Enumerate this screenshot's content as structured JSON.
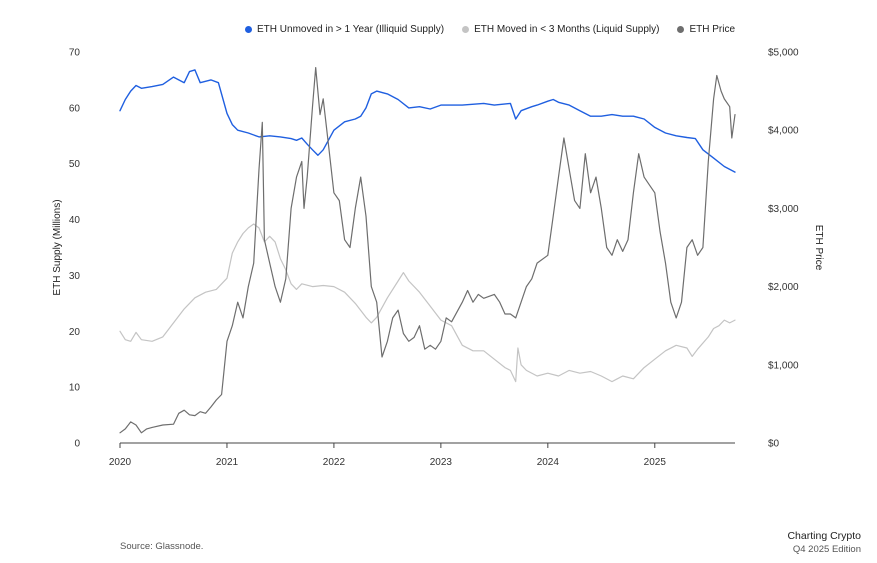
{
  "chart_data": {
    "type": "line",
    "title": "",
    "xlabel": "",
    "ylabel": "ETH Supply (Millions)",
    "y2label": "ETH Price",
    "x_ticks": [
      "2020",
      "2021",
      "2022",
      "2023",
      "2024",
      "2025"
    ],
    "x_range": [
      2020.0,
      2025.75
    ],
    "ylim": [
      0,
      70
    ],
    "y_ticks": [
      "0",
      "10",
      "20",
      "30",
      "40",
      "50",
      "60",
      "70"
    ],
    "y2lim": [
      0,
      5000
    ],
    "y2_ticks": [
      "$0",
      "$1,000",
      "$2,000",
      "$3,000",
      "$4,000",
      "$5,000"
    ],
    "legend_position": "top-right",
    "series": [
      {
        "name": "ETH Unmoved in > 1 Year (Illiquid Supply)",
        "color": "#1f5fe0",
        "axis": "left",
        "points": [
          [
            2020.0,
            59.5
          ],
          [
            2020.05,
            61.5
          ],
          [
            2020.1,
            63
          ],
          [
            2020.15,
            64
          ],
          [
            2020.2,
            63.5
          ],
          [
            2020.3,
            63.8
          ],
          [
            2020.4,
            64.2
          ],
          [
            2020.5,
            65.5
          ],
          [
            2020.6,
            64.5
          ],
          [
            2020.65,
            66.5
          ],
          [
            2020.7,
            66.8
          ],
          [
            2020.75,
            64.5
          ],
          [
            2020.85,
            65
          ],
          [
            2020.92,
            64.5
          ],
          [
            2021.0,
            59
          ],
          [
            2021.05,
            57
          ],
          [
            2021.1,
            56
          ],
          [
            2021.2,
            55.5
          ],
          [
            2021.3,
            54.8
          ],
          [
            2021.4,
            55
          ],
          [
            2021.5,
            54.8
          ],
          [
            2021.6,
            54.5
          ],
          [
            2021.65,
            54.2
          ],
          [
            2021.7,
            54.6
          ],
          [
            2021.75,
            53.5
          ],
          [
            2021.8,
            52.5
          ],
          [
            2021.85,
            51.5
          ],
          [
            2021.9,
            52.5
          ],
          [
            2022.0,
            56
          ],
          [
            2022.1,
            57.5
          ],
          [
            2022.2,
            58
          ],
          [
            2022.25,
            58.5
          ],
          [
            2022.3,
            60
          ],
          [
            2022.35,
            62.5
          ],
          [
            2022.4,
            63
          ],
          [
            2022.5,
            62.5
          ],
          [
            2022.6,
            61.5
          ],
          [
            2022.7,
            60
          ],
          [
            2022.8,
            60.2
          ],
          [
            2022.9,
            59.8
          ],
          [
            2023.0,
            60.5
          ],
          [
            2023.2,
            60.5
          ],
          [
            2023.4,
            60.8
          ],
          [
            2023.5,
            60.5
          ],
          [
            2023.65,
            60.8
          ],
          [
            2023.7,
            58
          ],
          [
            2023.75,
            59.5
          ],
          [
            2023.85,
            60.2
          ],
          [
            2023.9,
            60.5
          ],
          [
            2024.0,
            61.2
          ],
          [
            2024.05,
            61.5
          ],
          [
            2024.1,
            61
          ],
          [
            2024.2,
            60.5
          ],
          [
            2024.3,
            59.5
          ],
          [
            2024.4,
            58.5
          ],
          [
            2024.5,
            58.5
          ],
          [
            2024.6,
            58.8
          ],
          [
            2024.7,
            58.5
          ],
          [
            2024.8,
            58.5
          ],
          [
            2024.9,
            58
          ],
          [
            2025.0,
            56.5
          ],
          [
            2025.1,
            55.5
          ],
          [
            2025.2,
            55
          ],
          [
            2025.3,
            54.7
          ],
          [
            2025.38,
            54.5
          ],
          [
            2025.45,
            52.5
          ],
          [
            2025.55,
            51
          ],
          [
            2025.65,
            49.5
          ],
          [
            2025.75,
            48.5
          ]
        ]
      },
      {
        "name": "ETH Moved in < 3 Months (Liquid Supply)",
        "color": "#c4c4c4",
        "axis": "left",
        "points": [
          [
            2020.0,
            20
          ],
          [
            2020.05,
            18.5
          ],
          [
            2020.1,
            18.2
          ],
          [
            2020.15,
            19.8
          ],
          [
            2020.2,
            18.5
          ],
          [
            2020.3,
            18.2
          ],
          [
            2020.4,
            19
          ],
          [
            2020.5,
            21.5
          ],
          [
            2020.6,
            24
          ],
          [
            2020.7,
            26
          ],
          [
            2020.8,
            27
          ],
          [
            2020.9,
            27.5
          ],
          [
            2021.0,
            29.5
          ],
          [
            2021.05,
            34
          ],
          [
            2021.1,
            36
          ],
          [
            2021.15,
            37.5
          ],
          [
            2021.2,
            38.5
          ],
          [
            2021.25,
            39.2
          ],
          [
            2021.3,
            38.5
          ],
          [
            2021.35,
            36
          ],
          [
            2021.4,
            37
          ],
          [
            2021.45,
            36
          ],
          [
            2021.5,
            33
          ],
          [
            2021.55,
            31
          ],
          [
            2021.6,
            28.5
          ],
          [
            2021.65,
            27.5
          ],
          [
            2021.7,
            28.5
          ],
          [
            2021.8,
            28
          ],
          [
            2021.9,
            28.2
          ],
          [
            2022.0,
            28
          ],
          [
            2022.1,
            27
          ],
          [
            2022.2,
            25
          ],
          [
            2022.3,
            22.5
          ],
          [
            2022.35,
            21.5
          ],
          [
            2022.4,
            22.5
          ],
          [
            2022.5,
            26
          ],
          [
            2022.6,
            29
          ],
          [
            2022.65,
            30.5
          ],
          [
            2022.7,
            29
          ],
          [
            2022.8,
            27
          ],
          [
            2022.9,
            24.5
          ],
          [
            2023.0,
            22
          ],
          [
            2023.1,
            21
          ],
          [
            2023.2,
            17.5
          ],
          [
            2023.3,
            16.5
          ],
          [
            2023.4,
            16.5
          ],
          [
            2023.5,
            15
          ],
          [
            2023.6,
            13.5
          ],
          [
            2023.65,
            13
          ],
          [
            2023.7,
            11
          ],
          [
            2023.72,
            17
          ],
          [
            2023.75,
            14
          ],
          [
            2023.8,
            13
          ],
          [
            2023.9,
            12
          ],
          [
            2024.0,
            12.5
          ],
          [
            2024.1,
            12
          ],
          [
            2024.2,
            13
          ],
          [
            2024.3,
            12.5
          ],
          [
            2024.4,
            12.8
          ],
          [
            2024.5,
            12
          ],
          [
            2024.6,
            11
          ],
          [
            2024.65,
            11.5
          ],
          [
            2024.7,
            12
          ],
          [
            2024.8,
            11.5
          ],
          [
            2024.9,
            13.5
          ],
          [
            2025.0,
            15
          ],
          [
            2025.1,
            16.5
          ],
          [
            2025.2,
            17.5
          ],
          [
            2025.3,
            17
          ],
          [
            2025.35,
            15.5
          ],
          [
            2025.4,
            16.8
          ],
          [
            2025.5,
            19
          ],
          [
            2025.55,
            20.5
          ],
          [
            2025.6,
            21
          ],
          [
            2025.65,
            22
          ],
          [
            2025.7,
            21.5
          ],
          [
            2025.75,
            22
          ]
        ]
      },
      {
        "name": "ETH Price",
        "color": "#6e6e6e",
        "axis": "right",
        "points": [
          [
            2020.0,
            130
          ],
          [
            2020.05,
            180
          ],
          [
            2020.1,
            270
          ],
          [
            2020.15,
            230
          ],
          [
            2020.2,
            130
          ],
          [
            2020.25,
            180
          ],
          [
            2020.3,
            200
          ],
          [
            2020.4,
            230
          ],
          [
            2020.5,
            240
          ],
          [
            2020.55,
            380
          ],
          [
            2020.6,
            420
          ],
          [
            2020.65,
            360
          ],
          [
            2020.7,
            350
          ],
          [
            2020.75,
            400
          ],
          [
            2020.8,
            380
          ],
          [
            2020.85,
            460
          ],
          [
            2020.9,
            550
          ],
          [
            2020.95,
            620
          ],
          [
            2021.0,
            1300
          ],
          [
            2021.05,
            1500
          ],
          [
            2021.1,
            1800
          ],
          [
            2021.15,
            1600
          ],
          [
            2021.2,
            2000
          ],
          [
            2021.25,
            2300
          ],
          [
            2021.3,
            3500
          ],
          [
            2021.33,
            4100
          ],
          [
            2021.35,
            2600
          ],
          [
            2021.4,
            2300
          ],
          [
            2021.45,
            2000
          ],
          [
            2021.5,
            1800
          ],
          [
            2021.55,
            2100
          ],
          [
            2021.6,
            3000
          ],
          [
            2021.65,
            3400
          ],
          [
            2021.7,
            3600
          ],
          [
            2021.72,
            3000
          ],
          [
            2021.75,
            3400
          ],
          [
            2021.8,
            4300
          ],
          [
            2021.83,
            4800
          ],
          [
            2021.87,
            4200
          ],
          [
            2021.9,
            4400
          ],
          [
            2021.95,
            3800
          ],
          [
            2022.0,
            3200
          ],
          [
            2022.05,
            3100
          ],
          [
            2022.1,
            2600
          ],
          [
            2022.15,
            2500
          ],
          [
            2022.2,
            3000
          ],
          [
            2022.25,
            3400
          ],
          [
            2022.3,
            2900
          ],
          [
            2022.35,
            2000
          ],
          [
            2022.4,
            1800
          ],
          [
            2022.45,
            1100
          ],
          [
            2022.5,
            1300
          ],
          [
            2022.55,
            1600
          ],
          [
            2022.6,
            1700
          ],
          [
            2022.65,
            1400
          ],
          [
            2022.7,
            1300
          ],
          [
            2022.75,
            1350
          ],
          [
            2022.8,
            1500
          ],
          [
            2022.85,
            1200
          ],
          [
            2022.9,
            1250
          ],
          [
            2022.95,
            1200
          ],
          [
            2023.0,
            1300
          ],
          [
            2023.05,
            1600
          ],
          [
            2023.1,
            1550
          ],
          [
            2023.2,
            1800
          ],
          [
            2023.25,
            1950
          ],
          [
            2023.3,
            1800
          ],
          [
            2023.35,
            1900
          ],
          [
            2023.4,
            1850
          ],
          [
            2023.5,
            1900
          ],
          [
            2023.55,
            1800
          ],
          [
            2023.6,
            1650
          ],
          [
            2023.65,
            1650
          ],
          [
            2023.7,
            1600
          ],
          [
            2023.8,
            2000
          ],
          [
            2023.85,
            2100
          ],
          [
            2023.9,
            2300
          ],
          [
            2024.0,
            2400
          ],
          [
            2024.05,
            2900
          ],
          [
            2024.1,
            3400
          ],
          [
            2024.15,
            3900
          ],
          [
            2024.2,
            3500
          ],
          [
            2024.25,
            3100
          ],
          [
            2024.3,
            3000
          ],
          [
            2024.35,
            3700
          ],
          [
            2024.4,
            3200
          ],
          [
            2024.45,
            3400
          ],
          [
            2024.5,
            3000
          ],
          [
            2024.55,
            2500
          ],
          [
            2024.6,
            2400
          ],
          [
            2024.65,
            2600
          ],
          [
            2024.7,
            2450
          ],
          [
            2024.75,
            2600
          ],
          [
            2024.8,
            3200
          ],
          [
            2024.85,
            3700
          ],
          [
            2024.9,
            3400
          ],
          [
            2024.95,
            3300
          ],
          [
            2025.0,
            3200
          ],
          [
            2025.05,
            2700
          ],
          [
            2025.1,
            2300
          ],
          [
            2025.15,
            1800
          ],
          [
            2025.2,
            1600
          ],
          [
            2025.25,
            1800
          ],
          [
            2025.3,
            2500
          ],
          [
            2025.35,
            2600
          ],
          [
            2025.4,
            2400
          ],
          [
            2025.45,
            2500
          ],
          [
            2025.5,
            3600
          ],
          [
            2025.55,
            4400
          ],
          [
            2025.58,
            4700
          ],
          [
            2025.62,
            4500
          ],
          [
            2025.65,
            4400
          ],
          [
            2025.7,
            4300
          ],
          [
            2025.72,
            3900
          ],
          [
            2025.75,
            4200
          ]
        ]
      }
    ]
  },
  "footer": {
    "source": "Source: Glassnode.",
    "brand_title": "Charting Crypto",
    "brand_edition": "Q4 2025 Edition"
  }
}
